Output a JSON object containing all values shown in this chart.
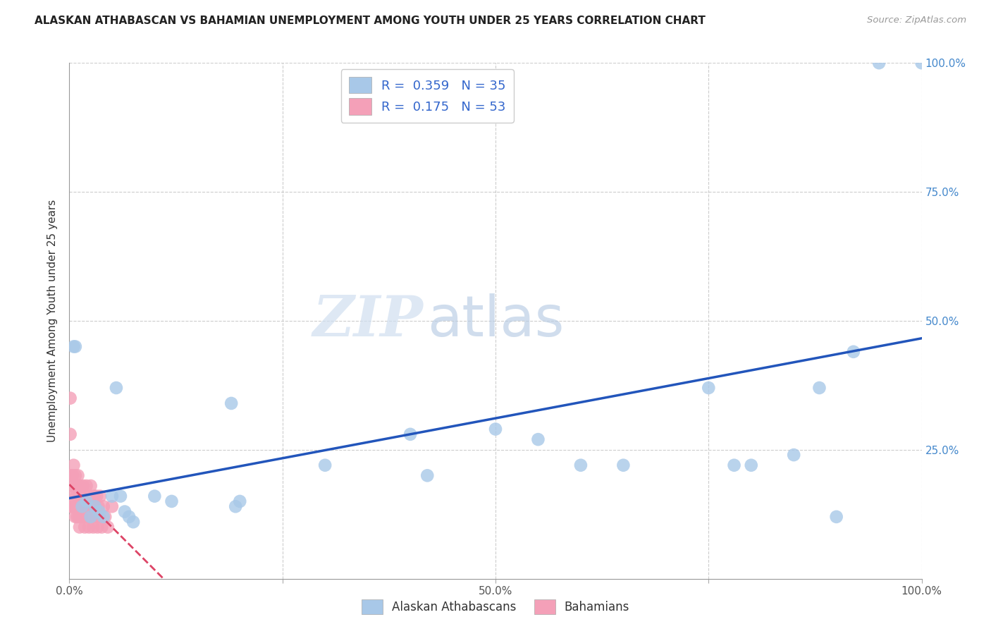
{
  "title": "ALASKAN ATHABASCAN VS BAHAMIAN UNEMPLOYMENT AMONG YOUTH UNDER 25 YEARS CORRELATION CHART",
  "source": "Source: ZipAtlas.com",
  "ylabel": "Unemployment Among Youth under 25 years",
  "legend_labels": [
    "Alaskan Athabascans",
    "Bahamians"
  ],
  "r_athabascan": 0.359,
  "n_athabascan": 35,
  "r_bahamian": 0.175,
  "n_bahamian": 53,
  "color_athabascan": "#a8c8e8",
  "color_bahamian": "#f4a0b8",
  "line_color_athabascan": "#2255bb",
  "line_color_bahamian": "#dd4466",
  "athabascan_x": [
    0.005,
    0.007,
    0.015,
    0.02,
    0.025,
    0.03,
    0.035,
    0.04,
    0.05,
    0.055,
    0.06,
    0.065,
    0.07,
    0.075,
    0.1,
    0.12,
    0.19,
    0.195,
    0.2,
    0.3,
    0.4,
    0.42,
    0.5,
    0.55,
    0.6,
    0.65,
    0.75,
    0.78,
    0.8,
    0.85,
    0.88,
    0.9,
    0.92,
    0.95,
    1.0
  ],
  "athabascan_y": [
    0.45,
    0.45,
    0.14,
    0.15,
    0.12,
    0.14,
    0.13,
    0.12,
    0.16,
    0.37,
    0.16,
    0.13,
    0.12,
    0.11,
    0.16,
    0.15,
    0.34,
    0.14,
    0.15,
    0.22,
    0.28,
    0.2,
    0.29,
    0.27,
    0.22,
    0.22,
    0.37,
    0.22,
    0.22,
    0.24,
    0.37,
    0.12,
    0.44,
    1.0,
    1.0
  ],
  "bahamian_x": [
    0.001,
    0.001,
    0.002,
    0.002,
    0.003,
    0.003,
    0.004,
    0.004,
    0.005,
    0.005,
    0.006,
    0.006,
    0.007,
    0.007,
    0.008,
    0.008,
    0.009,
    0.009,
    0.01,
    0.01,
    0.011,
    0.011,
    0.012,
    0.012,
    0.013,
    0.014,
    0.015,
    0.016,
    0.017,
    0.018,
    0.019,
    0.02,
    0.021,
    0.022,
    0.023,
    0.024,
    0.025,
    0.026,
    0.027,
    0.028,
    0.029,
    0.03,
    0.031,
    0.032,
    0.033,
    0.034,
    0.035,
    0.036,
    0.038,
    0.04,
    0.042,
    0.045,
    0.05
  ],
  "bahamian_y": [
    0.35,
    0.28,
    0.14,
    0.2,
    0.14,
    0.18,
    0.14,
    0.2,
    0.16,
    0.22,
    0.14,
    0.18,
    0.12,
    0.2,
    0.14,
    0.16,
    0.12,
    0.18,
    0.14,
    0.2,
    0.12,
    0.16,
    0.1,
    0.18,
    0.14,
    0.16,
    0.12,
    0.18,
    0.14,
    0.1,
    0.16,
    0.18,
    0.12,
    0.14,
    0.1,
    0.16,
    0.18,
    0.12,
    0.14,
    0.1,
    0.16,
    0.14,
    0.12,
    0.16,
    0.1,
    0.14,
    0.12,
    0.16,
    0.1,
    0.14,
    0.12,
    0.1,
    0.14
  ],
  "watermark_zip": "ZIP",
  "watermark_atlas": "atlas",
  "xlim": [
    0.0,
    1.0
  ],
  "ylim": [
    0.0,
    1.0
  ],
  "background_color": "#ffffff",
  "grid_color": "#cccccc"
}
